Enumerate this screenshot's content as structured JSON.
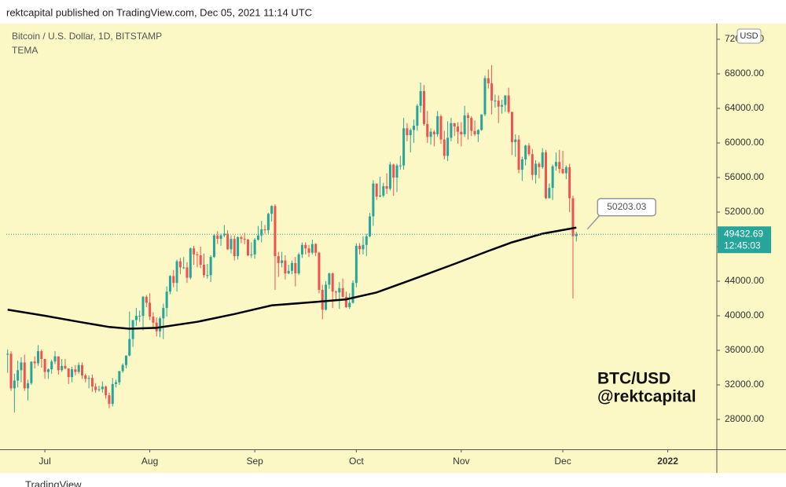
{
  "header": {
    "publish_line": "rektcapital published on TradingView.com, Dec 05, 2021 11:14 UTC"
  },
  "footer": {
    "brand": "TradingView"
  },
  "chart_data": {
    "type": "candlestick",
    "title": "Bitcoin / U.S. Dollar, 1D, BITSTAMP",
    "currency": "USD",
    "countdown": "12:45:03",
    "watermark": [
      "BTC/USD",
      "@rektcapital"
    ],
    "up_color": "#26a69a",
    "down_color": "#ef5350",
    "xlim": [
      -11.4,
      198.5
    ],
    "xticks": [
      {
        "value": 0,
        "label": "Jul"
      },
      {
        "value": 31,
        "label": "Aug"
      },
      {
        "value": 62,
        "label": "Sep"
      },
      {
        "value": 92,
        "label": "Oct"
      },
      {
        "value": 123,
        "label": "Nov"
      },
      {
        "value": 153,
        "label": "Dec"
      },
      {
        "value": 184,
        "label": "2022"
      }
    ],
    "ylim": [
      24545,
      73818
    ],
    "yticks": [
      {
        "value": 28000,
        "label": "28000.00"
      },
      {
        "value": 32000,
        "label": "32000.00"
      },
      {
        "value": 36000,
        "label": "36000.00"
      },
      {
        "value": 40000,
        "label": "40000.00"
      },
      {
        "value": 44000,
        "label": "44000.00"
      },
      {
        "value": 48000,
        "label": "48000.00"
      },
      {
        "value": 52000,
        "label": "52000.00"
      },
      {
        "value": 56000,
        "label": "56000.00"
      },
      {
        "value": 60000,
        "label": "60000.00"
      },
      {
        "value": 64000,
        "label": "64000.00"
      },
      {
        "value": 68000,
        "label": "68000.00"
      },
      {
        "value": 72000,
        "label": "72000.00"
      }
    ],
    "x": [
      -11,
      -10,
      -9,
      -8,
      -7,
      -6,
      -5,
      -4,
      -3,
      -2,
      -1,
      0,
      1,
      2,
      3,
      4,
      5,
      6,
      7,
      8,
      9,
      10,
      11,
      12,
      13,
      14,
      15,
      16,
      17,
      18,
      19,
      20,
      21,
      22,
      23,
      24,
      25,
      26,
      27,
      28,
      29,
      30,
      31,
      32,
      33,
      34,
      35,
      36,
      37,
      38,
      39,
      40,
      41,
      42,
      43,
      44,
      45,
      46,
      47,
      48,
      49,
      50,
      51,
      52,
      53,
      54,
      55,
      56,
      57,
      58,
      59,
      60,
      61,
      62,
      63,
      64,
      65,
      66,
      67,
      68,
      69,
      70,
      71,
      72,
      73,
      74,
      75,
      76,
      77,
      78,
      79,
      80,
      81,
      82,
      83,
      84,
      85,
      86,
      87,
      88,
      89,
      90,
      91,
      92,
      93,
      94,
      95,
      96,
      97,
      98,
      99,
      100,
      101,
      102,
      103,
      104,
      105,
      106,
      107,
      108,
      109,
      110,
      111,
      112,
      113,
      114,
      115,
      116,
      117,
      118,
      119,
      120,
      121,
      122,
      123,
      124,
      125,
      126,
      127,
      128,
      129,
      130,
      131,
      132,
      133,
      134,
      135,
      136,
      137,
      138,
      139,
      140,
      141,
      142,
      143,
      144,
      145,
      146,
      147,
      148,
      149,
      150,
      151,
      152,
      153,
      154,
      155,
      156,
      157
    ],
    "ohlc": [
      [
        35500,
        36100,
        33400,
        35600
      ],
      [
        35600,
        35900,
        31300,
        31600
      ],
      [
        31600,
        33300,
        28800,
        32500
      ],
      [
        32500,
        34800,
        31700,
        33700
      ],
      [
        33700,
        35200,
        32300,
        34600
      ],
      [
        34600,
        35500,
        31300,
        31600
      ],
      [
        31600,
        32600,
        30200,
        32200
      ],
      [
        32200,
        34700,
        32000,
        34700
      ],
      [
        34700,
        35300,
        33900,
        34500
      ],
      [
        34500,
        36600,
        34200,
        35900
      ],
      [
        35900,
        36100,
        34000,
        35000
      ],
      [
        35000,
        35000,
        32700,
        33500
      ],
      [
        33500,
        33900,
        32700,
        33800
      ],
      [
        33800,
        34900,
        33300,
        34700
      ],
      [
        34700,
        35900,
        34400,
        35300
      ],
      [
        35300,
        35300,
        33200,
        33700
      ],
      [
        33700,
        35000,
        33500,
        34200
      ],
      [
        34200,
        35000,
        33800,
        33900
      ],
      [
        33900,
        33900,
        32100,
        32900
      ],
      [
        32900,
        34100,
        32300,
        33800
      ],
      [
        33800,
        34300,
        33100,
        33500
      ],
      [
        33500,
        34600,
        33300,
        34300
      ],
      [
        34300,
        34600,
        32700,
        33100
      ],
      [
        33100,
        33300,
        32300,
        32700
      ],
      [
        32700,
        33100,
        31600,
        32800
      ],
      [
        32800,
        33200,
        31200,
        31800
      ],
      [
        31800,
        32200,
        31100,
        31400
      ],
      [
        31400,
        31900,
        31200,
        31500
      ],
      [
        31500,
        32400,
        31100,
        31800
      ],
      [
        31800,
        31900,
        30400,
        30800
      ],
      [
        30800,
        31100,
        29300,
        29800
      ],
      [
        29800,
        32800,
        29500,
        32100
      ],
      [
        32100,
        32600,
        31700,
        32300
      ],
      [
        32300,
        33600,
        32000,
        33600
      ],
      [
        33600,
        34500,
        33400,
        34300
      ],
      [
        34300,
        35400,
        33900,
        35400
      ],
      [
        35400,
        40500,
        35300,
        37300
      ],
      [
        37300,
        39500,
        36400,
        39500
      ],
      [
        39500,
        40900,
        38800,
        40000
      ],
      [
        40000,
        40600,
        39300,
        40000
      ],
      [
        40000,
        42300,
        38300,
        42200
      ],
      [
        42200,
        42400,
        41000,
        41500
      ],
      [
        41500,
        42600,
        39500,
        39900
      ],
      [
        39900,
        40400,
        38700,
        39200
      ],
      [
        39200,
        39800,
        37600,
        38200
      ],
      [
        38200,
        39900,
        37500,
        39700
      ],
      [
        39700,
        41400,
        37300,
        40900
      ],
      [
        40900,
        43400,
        39900,
        42800
      ],
      [
        42800,
        44700,
        42500,
        44600
      ],
      [
        44600,
        45300,
        43300,
        43800
      ],
      [
        43800,
        46500,
        42800,
        46300
      ],
      [
        46300,
        46700,
        44800,
        45600
      ],
      [
        45600,
        46800,
        45400,
        45600
      ],
      [
        45600,
        46200,
        43800,
        44400
      ],
      [
        44400,
        47900,
        44200,
        47800
      ],
      [
        47800,
        48100,
        45900,
        47100
      ],
      [
        47100,
        47400,
        45600,
        47000
      ],
      [
        47000,
        48000,
        45500,
        45900
      ],
      [
        45900,
        47200,
        44400,
        44700
      ],
      [
        44700,
        46000,
        44300,
        44700
      ],
      [
        44700,
        47000,
        43900,
        46800
      ],
      [
        46800,
        49400,
        46700,
        49300
      ],
      [
        49300,
        49800,
        48300,
        48900
      ],
      [
        48900,
        49500,
        48100,
        49300
      ],
      [
        49300,
        50500,
        49100,
        49500
      ],
      [
        49500,
        49900,
        47600,
        47700
      ],
      [
        47700,
        49300,
        47200,
        48900
      ],
      [
        48900,
        49300,
        46400,
        46900
      ],
      [
        46900,
        49200,
        46500,
        49100
      ],
      [
        49100,
        49300,
        48400,
        48900
      ],
      [
        48900,
        49600,
        48300,
        48800
      ],
      [
        48800,
        48900,
        46900,
        47000
      ],
      [
        47000,
        48500,
        46700,
        47100
      ],
      [
        47100,
        49000,
        46600,
        48800
      ],
      [
        48800,
        50400,
        48700,
        49300
      ],
      [
        49300,
        51000,
        48500,
        50000
      ],
      [
        50000,
        50500,
        49500,
        49900
      ],
      [
        49900,
        51900,
        49500,
        51800
      ],
      [
        51800,
        52800,
        50900,
        52700
      ],
      [
        52700,
        52900,
        43000,
        46900
      ],
      [
        46900,
        47400,
        44500,
        46100
      ],
      [
        46100,
        47400,
        45600,
        46400
      ],
      [
        46400,
        47000,
        44200,
        44900
      ],
      [
        44900,
        45900,
        44800,
        45200
      ],
      [
        45200,
        46400,
        44800,
        46100
      ],
      [
        46100,
        46800,
        43400,
        44900
      ],
      [
        44900,
        47300,
        44700,
        47100
      ],
      [
        47100,
        48500,
        46700,
        48200
      ],
      [
        48200,
        48500,
        47100,
        47800
      ],
      [
        47800,
        48200,
        46800,
        47300
      ],
      [
        47300,
        48800,
        47100,
        48300
      ],
      [
        48300,
        48400,
        46900,
        47300
      ],
      [
        47300,
        47400,
        42600,
        43000
      ],
      [
        43000,
        43600,
        39600,
        40700
      ],
      [
        40700,
        44000,
        40600,
        43600
      ],
      [
        43600,
        45000,
        43100,
        44900
      ],
      [
        44900,
        45000,
        40900,
        42800
      ],
      [
        42800,
        42900,
        41700,
        42700
      ],
      [
        42700,
        43900,
        40800,
        43200
      ],
      [
        43200,
        44300,
        42100,
        42200
      ],
      [
        42200,
        42800,
        40900,
        41000
      ],
      [
        41000,
        42600,
        40800,
        41500
      ],
      [
        41500,
        44100,
        41400,
        43800
      ],
      [
        43800,
        48400,
        43300,
        48100
      ],
      [
        48100,
        48400,
        47100,
        47700
      ],
      [
        47700,
        49200,
        47100,
        48200
      ],
      [
        48200,
        49500,
        46900,
        49200
      ],
      [
        49200,
        51900,
        49100,
        51500
      ],
      [
        51500,
        55700,
        50400,
        55300
      ],
      [
        55300,
        55300,
        53400,
        53800
      ],
      [
        53800,
        56100,
        53700,
        53900
      ],
      [
        53900,
        55400,
        53700,
        55000
      ],
      [
        55000,
        56500,
        54100,
        54700
      ],
      [
        54700,
        57800,
        54500,
        57500
      ],
      [
        57500,
        57600,
        53900,
        56000
      ],
      [
        56000,
        57600,
        54300,
        57400
      ],
      [
        57400,
        58500,
        56900,
        57400
      ],
      [
        57400,
        62900,
        56900,
        61700
      ],
      [
        61700,
        62300,
        60200,
        60900
      ],
      [
        60900,
        61700,
        58900,
        61500
      ],
      [
        61500,
        62700,
        60000,
        62000
      ],
      [
        62000,
        64500,
        61400,
        64300
      ],
      [
        64300,
        67000,
        63500,
        66000
      ],
      [
        66000,
        66700,
        62000,
        62200
      ],
      [
        62200,
        63700,
        60000,
        60700
      ],
      [
        60700,
        61700,
        59800,
        61300
      ],
      [
        61300,
        61500,
        59600,
        61000
      ],
      [
        61000,
        63700,
        60700,
        63100
      ],
      [
        63100,
        63300,
        59900,
        60400
      ],
      [
        60400,
        61400,
        58100,
        58500
      ],
      [
        58500,
        62500,
        57900,
        60600
      ],
      [
        60600,
        62900,
        60200,
        62300
      ],
      [
        62300,
        62300,
        60800,
        61900
      ],
      [
        61900,
        62400,
        59900,
        61300
      ],
      [
        61300,
        62400,
        59600,
        61000
      ],
      [
        61000,
        64300,
        60700,
        63200
      ],
      [
        63200,
        63500,
        60400,
        62900
      ],
      [
        62900,
        63100,
        60800,
        61400
      ],
      [
        61400,
        62600,
        60800,
        61000
      ],
      [
        61000,
        61600,
        60100,
        61500
      ],
      [
        61500,
        63300,
        61400,
        63300
      ],
      [
        63300,
        67800,
        63100,
        67500
      ],
      [
        67500,
        68500,
        66300,
        66900
      ],
      [
        66900,
        69000,
        63300,
        64900
      ],
      [
        64900,
        65600,
        64100,
        64900
      ],
      [
        64900,
        65500,
        62300,
        64200
      ],
      [
        64200,
        65000,
        63400,
        64400
      ],
      [
        64400,
        65500,
        63600,
        65500
      ],
      [
        65500,
        66400,
        63400,
        63600
      ],
      [
        63600,
        63600,
        58600,
        60100
      ],
      [
        60100,
        61000,
        58400,
        60400
      ],
      [
        60400,
        60900,
        56500,
        56900
      ],
      [
        56900,
        58400,
        55600,
        58100
      ],
      [
        58100,
        59800,
        57400,
        59700
      ],
      [
        59700,
        60000,
        58500,
        58700
      ],
      [
        58700,
        59300,
        55700,
        56300
      ],
      [
        56300,
        58000,
        55300,
        57600
      ],
      [
        57600,
        57800,
        55900,
        57200
      ],
      [
        57200,
        59400,
        57000,
        58900
      ],
      [
        58900,
        59200,
        53500,
        53600
      ],
      [
        53600,
        55300,
        53600,
        54800
      ],
      [
        54800,
        57500,
        53400,
        57300
      ],
      [
        57300,
        58900,
        56800,
        57800
      ],
      [
        57800,
        59200,
        56500,
        57000
      ],
      [
        57000,
        59100,
        56400,
        56500
      ],
      [
        56500,
        57400,
        55800,
        57200
      ],
      [
        57200,
        57600,
        52000,
        53600
      ],
      [
        53600,
        53900,
        42000,
        49200
      ],
      [
        49200,
        49700,
        48600,
        49432.69
      ]
    ],
    "indicator": {
      "name": "TEMA",
      "color": "#000000",
      "x": [
        -11,
        0,
        10,
        19,
        25,
        33,
        45,
        56,
        67,
        80,
        89,
        98,
        110,
        121,
        131,
        138,
        147,
        157
      ],
      "values": [
        40700,
        40000,
        39300,
        38700,
        38500,
        38600,
        39300,
        40200,
        41200,
        41600,
        41900,
        42700,
        44400,
        46000,
        47500,
        48500,
        49500,
        50203.03
      ]
    }
  }
}
